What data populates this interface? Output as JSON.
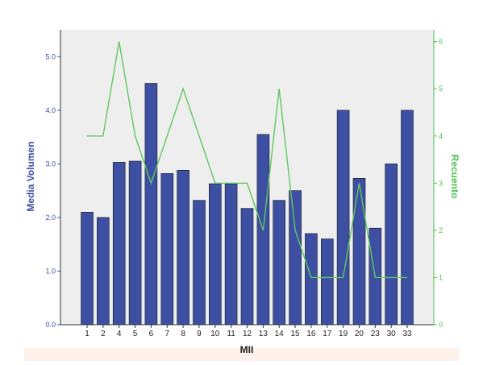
{
  "chart_data": {
    "type": "bar",
    "title": "",
    "xlabel": "MII",
    "ylabel": "Media Volumen",
    "y2label": "Recuento",
    "categories": [
      "1",
      "2",
      "4",
      "5",
      "6",
      "7",
      "8",
      "9",
      "10",
      "11",
      "12",
      "13",
      "14",
      "15",
      "16",
      "17",
      "19",
      "20",
      "23",
      "30",
      "33"
    ],
    "ylim": [
      0,
      5.5
    ],
    "y2lim": [
      0,
      6.25
    ],
    "yticks": [
      "0.0",
      "1.0",
      "2.0",
      "3.0",
      "4.0",
      "5.0"
    ],
    "y2ticks": [
      "0",
      "1",
      "2",
      "3",
      "4",
      "5",
      "6"
    ],
    "series": [
      {
        "type": "bar",
        "axis": "left",
        "color": "#3d4fa3",
        "values": [
          2.1,
          2.0,
          3.03,
          3.05,
          4.5,
          2.82,
          2.88,
          2.32,
          2.63,
          2.63,
          2.17,
          3.55,
          2.32,
          2.5,
          1.7,
          1.6,
          4.0,
          2.73,
          1.8,
          3.0,
          4.0
        ]
      },
      {
        "type": "line",
        "axis": "right",
        "color": "#5ec95e",
        "values": [
          4,
          4,
          6,
          4,
          3,
          4,
          5,
          4,
          3,
          3,
          3,
          2,
          5,
          2,
          1,
          1,
          1,
          3,
          1,
          1,
          1
        ]
      }
    ],
    "grid": false,
    "plot_background": "#eeeeee",
    "legend": "none"
  }
}
